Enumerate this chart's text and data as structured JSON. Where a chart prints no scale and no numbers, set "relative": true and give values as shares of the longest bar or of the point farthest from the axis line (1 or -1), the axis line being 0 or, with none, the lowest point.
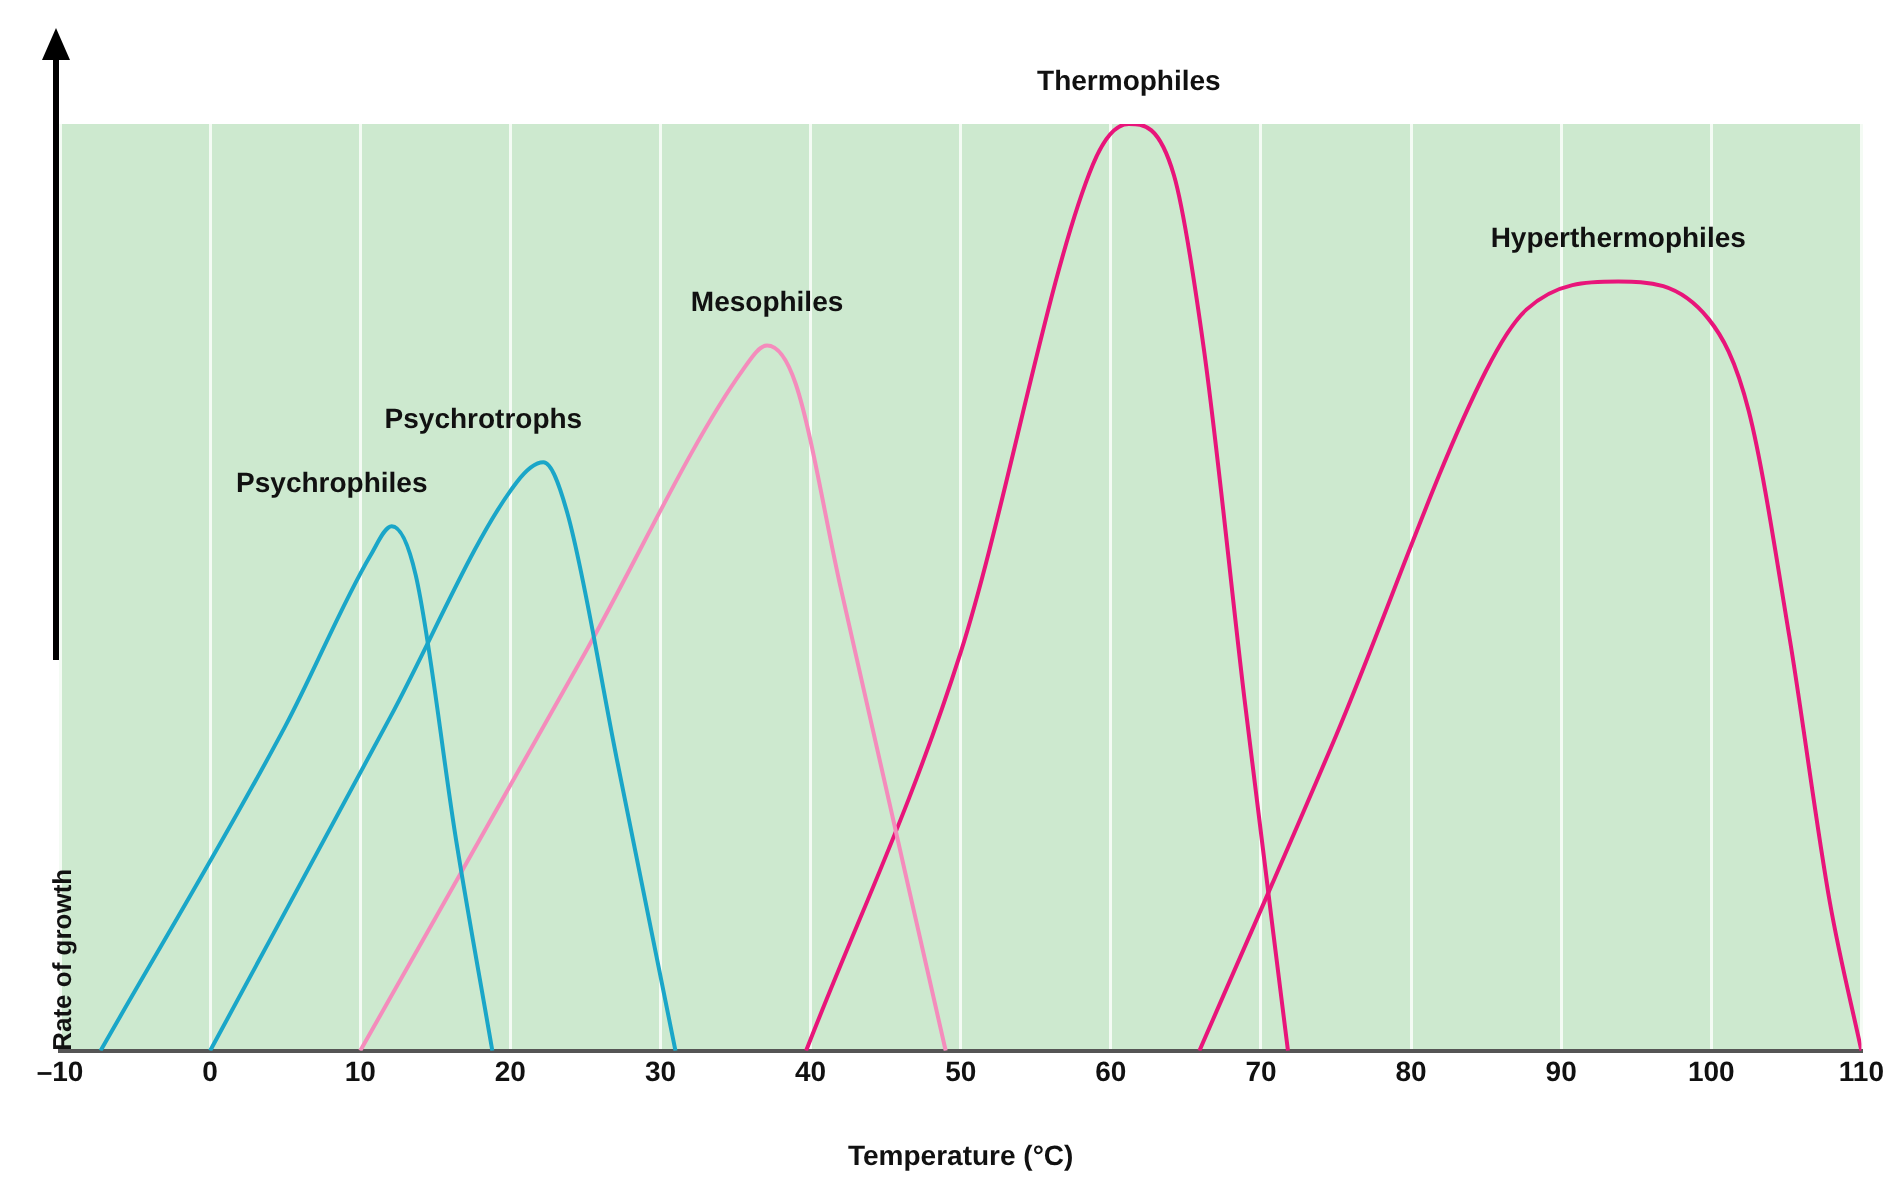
{
  "chart_data": {
    "type": "line",
    "xlabel": "Temperature (°C)",
    "ylabel": "Rate of growth",
    "relative": true,
    "xlim": [
      -10,
      110
    ],
    "xticks": [
      {
        "value": -10,
        "label": "–10"
      },
      0,
      10,
      20,
      30,
      40,
      50,
      60,
      70,
      80,
      90,
      100,
      110
    ],
    "grid": "x",
    "legend": false,
    "marker": "none",
    "line_style": "solid",
    "series": [
      {
        "name": "Psychrophiles",
        "color": "#1aa6c8",
        "x": [
          -7.3,
          5,
          10.7,
          12.1,
          13.7,
          16.4,
          18.8
        ],
        "values": [
          0,
          0.35,
          0.535,
          0.566,
          0.513,
          0.226,
          0
        ]
      },
      {
        "name": "Psychrotrophs",
        "color": "#1aa6c8",
        "x": [
          0,
          12,
          20.4,
          22.2,
          23.8,
          27.1,
          31
        ],
        "values": [
          0,
          0.36,
          0.613,
          0.635,
          0.58,
          0.314,
          0
        ]
      },
      {
        "name": "Mesophiles",
        "color": "#f48cbc",
        "x": [
          10,
          25,
          35.5,
          37.1,
          39,
          42,
          49
        ],
        "values": [
          0,
          0.43,
          0.735,
          0.761,
          0.72,
          0.5,
          0
        ]
      },
      {
        "name": "Thermophiles",
        "color": "#e8157a",
        "x": [
          39.7,
          50,
          58.8,
          61.2,
          64.2,
          66.2,
          68.9,
          71.8
        ],
        "values": [
          0,
          0.43,
          0.956,
          1,
          0.945,
          0.757,
          0.38,
          0
        ]
      },
      {
        "name": "Hyperthermophiles",
        "color": "#e8157a",
        "x": [
          65.9,
          75,
          85,
          87.7,
          93.8,
          99.8,
          102.5,
          105.2,
          107.9,
          110
        ],
        "values": [
          0,
          0.34,
          0.734,
          0.8,
          0.83,
          0.79,
          0.69,
          0.447,
          0.16,
          0
        ]
      }
    ]
  }
}
